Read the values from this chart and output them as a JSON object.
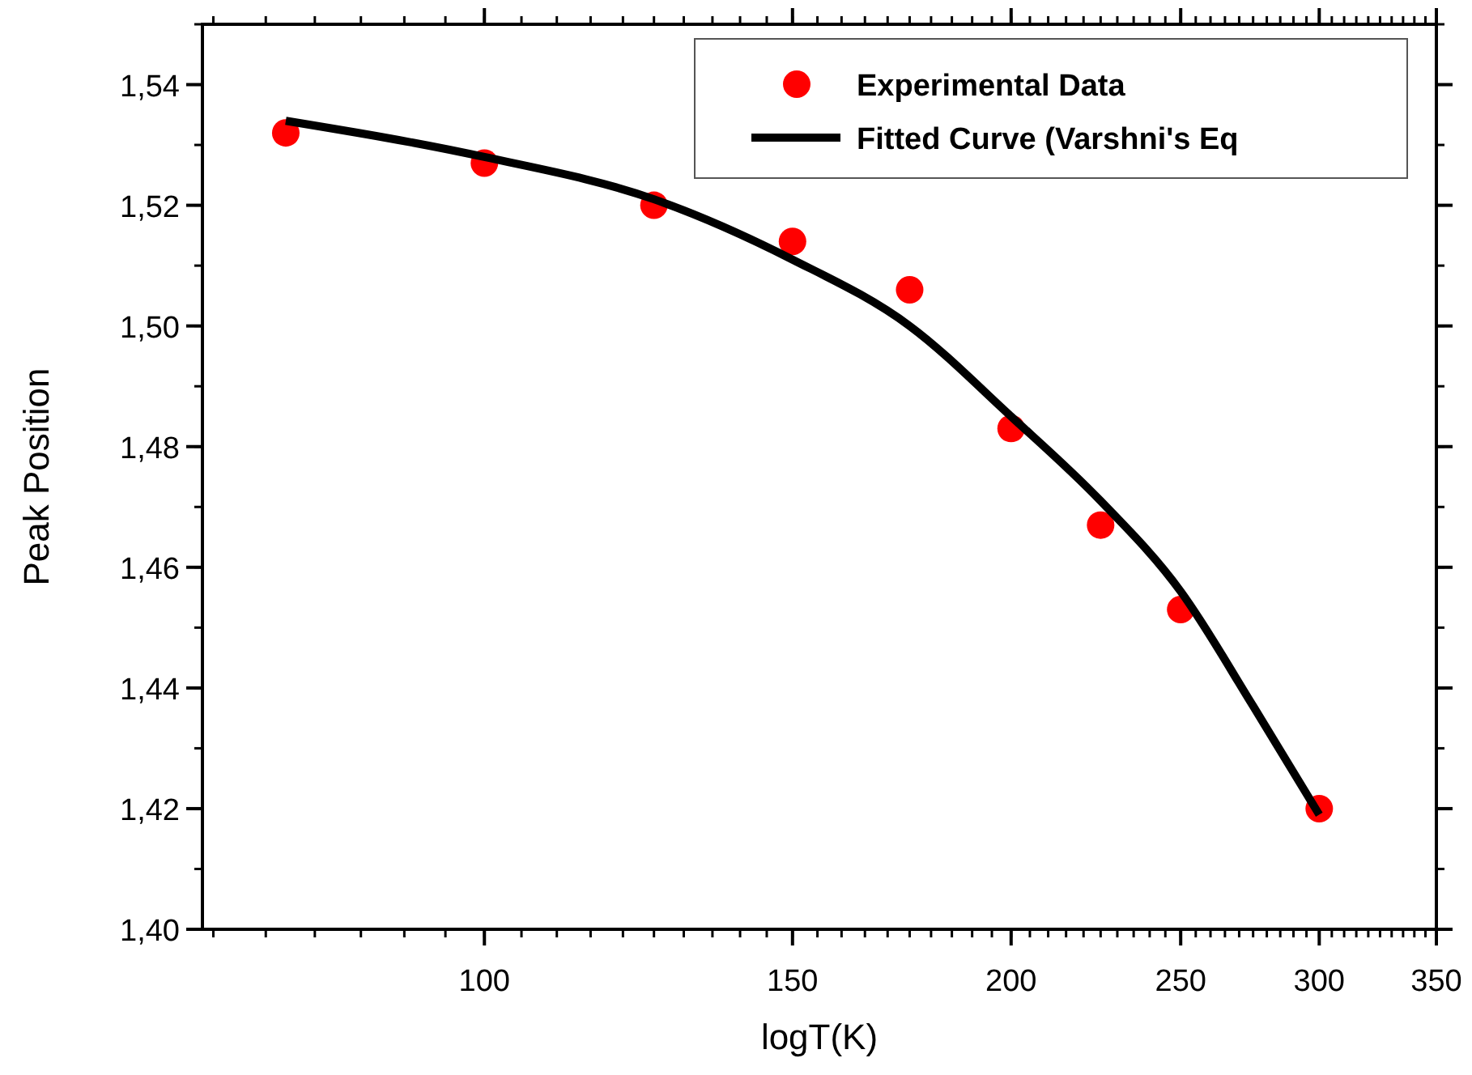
{
  "chart_data": {
    "type": "scatter",
    "xlabel": "logT(K)",
    "ylabel": "Peak Position",
    "log": "x",
    "xlim": [
      69,
      350
    ],
    "ylim": [
      1.4,
      1.55
    ],
    "xticks": [
      100,
      150,
      200,
      250,
      300,
      350
    ],
    "yticks": [
      {
        "value": 1.4,
        "label": "1,40"
      },
      {
        "value": 1.42,
        "label": "1,42"
      },
      {
        "value": 1.44,
        "label": "1,44"
      },
      {
        "value": 1.46,
        "label": "1,46"
      },
      {
        "value": 1.48,
        "label": "1,48"
      },
      {
        "value": 1.5,
        "label": "1,50"
      },
      {
        "value": 1.52,
        "label": "1,52"
      },
      {
        "value": 1.54,
        "label": "1,54"
      }
    ],
    "legend": "top right",
    "grid": false,
    "series": [
      {
        "name": "Experimental Data",
        "marker": "circle",
        "color": "#ff0000",
        "x": [
          77,
          100,
          125,
          150,
          175,
          200,
          225,
          250,
          300
        ],
        "values": [
          1.532,
          1.527,
          1.52,
          1.514,
          1.506,
          1.483,
          1.467,
          1.453,
          1.42
        ]
      },
      {
        "name": "Fitted Curve (Varshni's Eq",
        "type": "line",
        "line_style": "solid",
        "marker": "none",
        "color": "#000000",
        "x": [
          77,
          100,
          125,
          150,
          175,
          200,
          225,
          250,
          275,
          300
        ],
        "values": [
          1.534,
          1.528,
          1.521,
          1.511,
          1.5,
          1.485,
          1.471,
          1.456,
          1.437,
          1.419
        ]
      }
    ]
  }
}
